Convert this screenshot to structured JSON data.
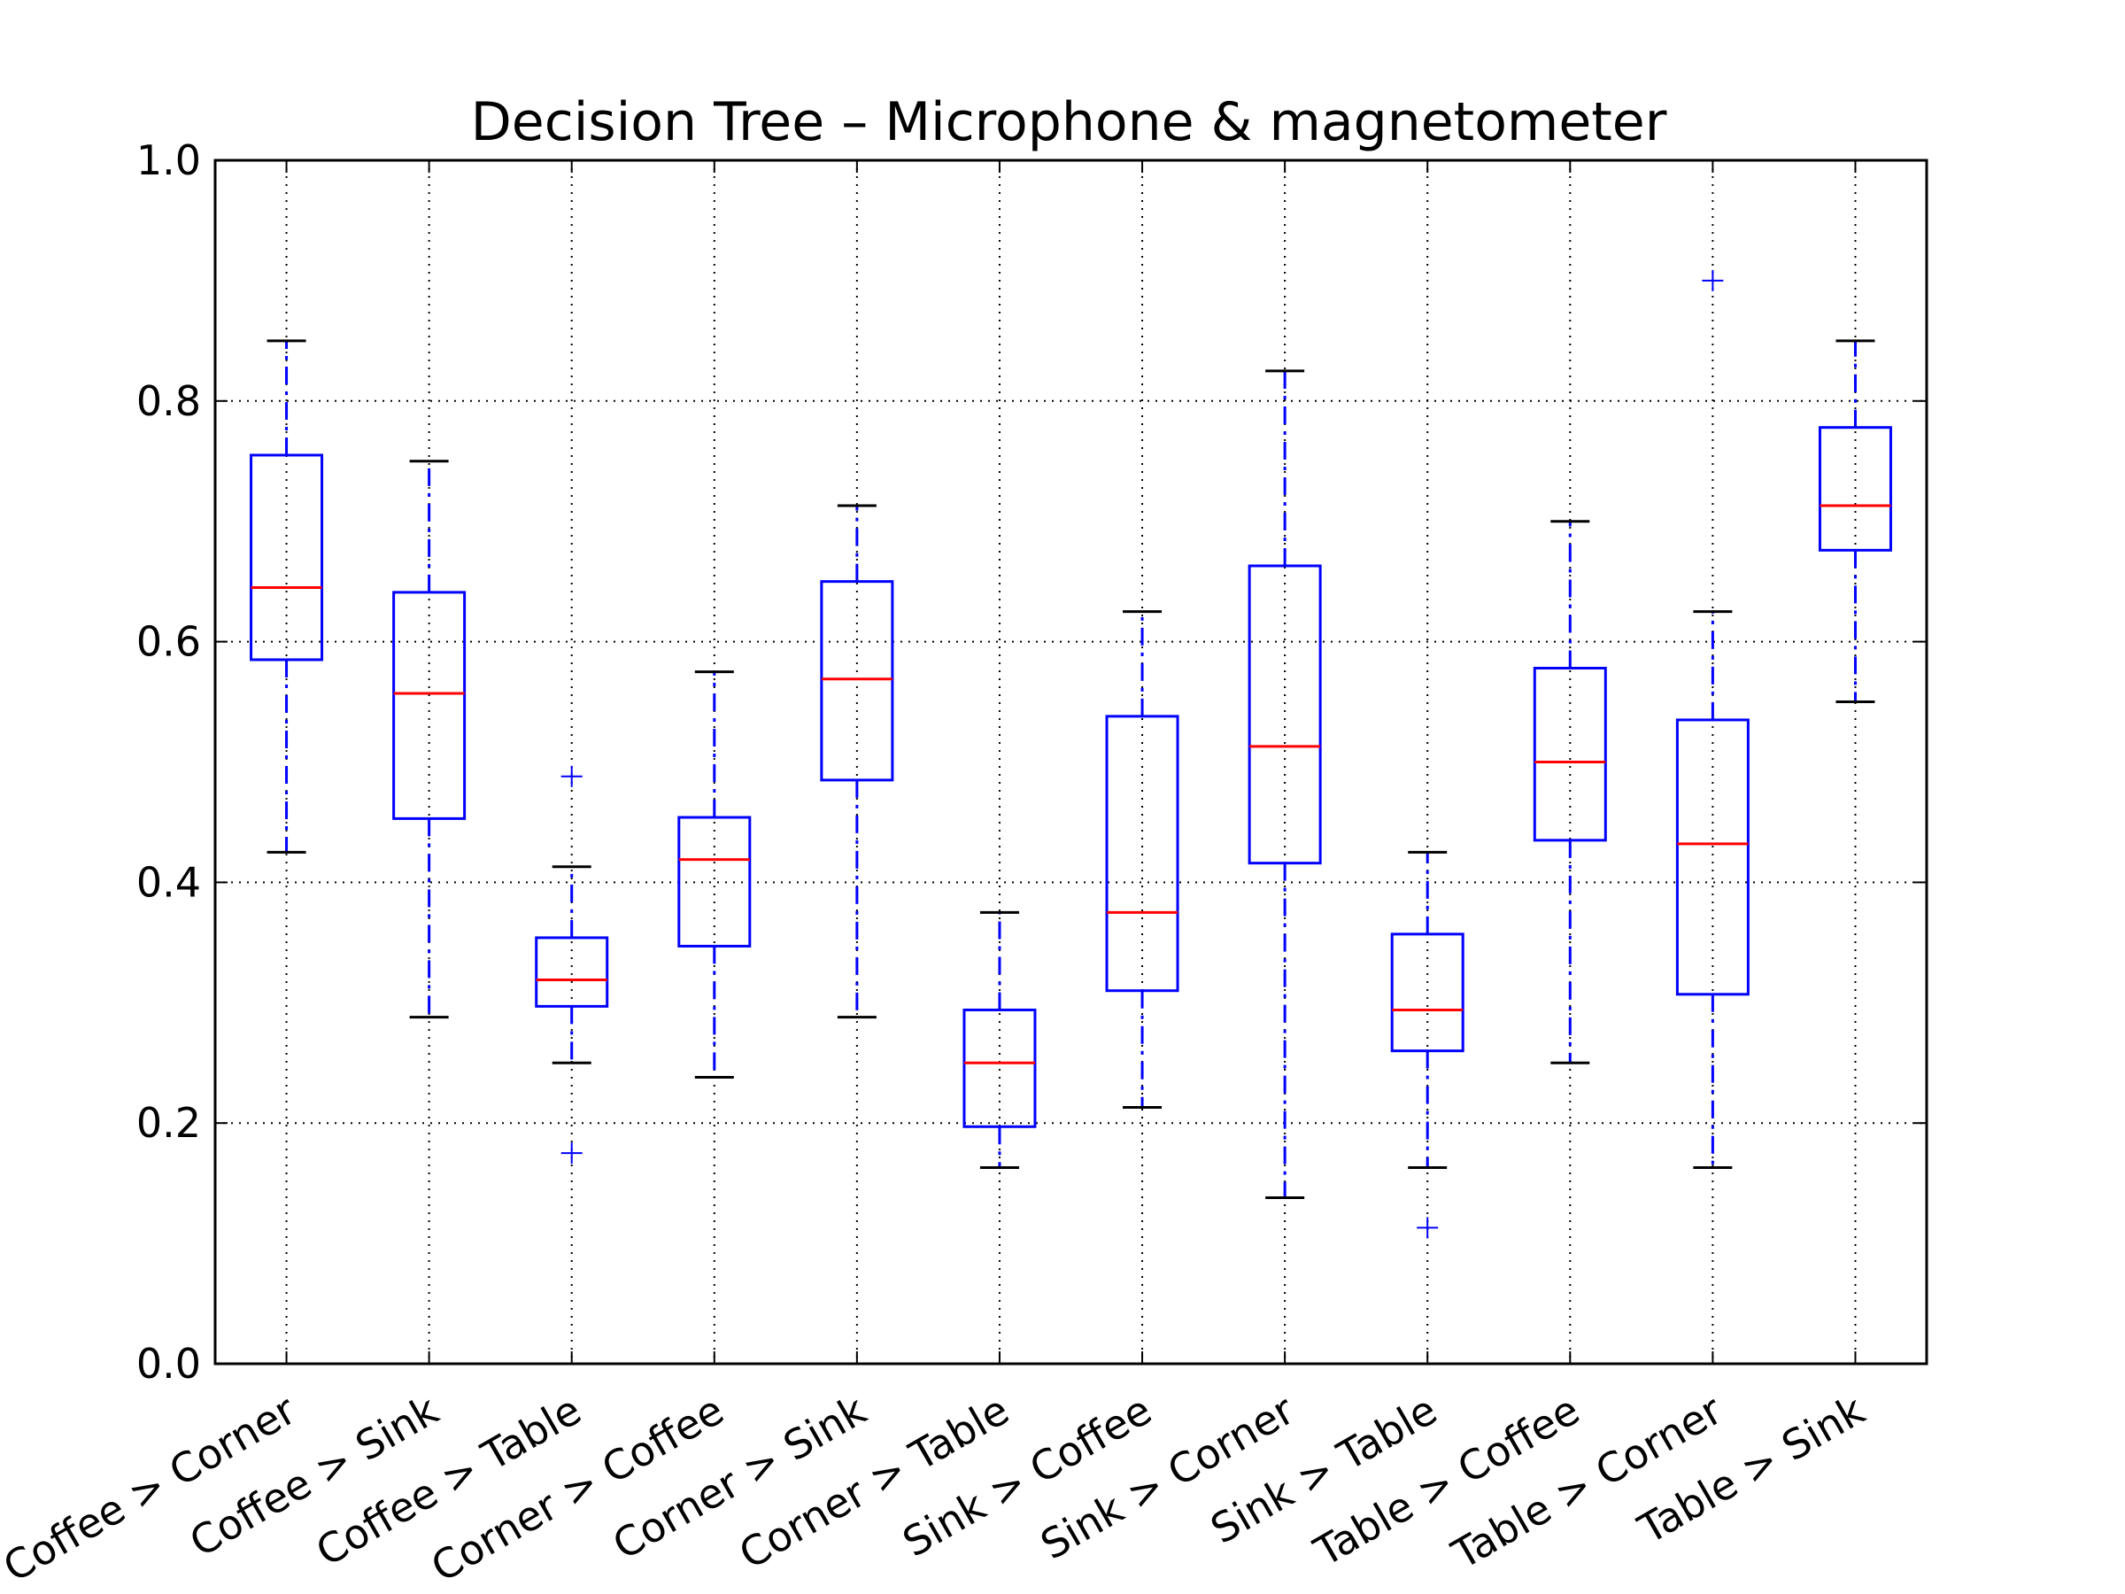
{
  "chart_data": {
    "type": "boxplot",
    "title": "Decision Tree – Microphone & magnetometer",
    "xlabel": "",
    "ylabel": "",
    "ylim": [
      0.0,
      1.0
    ],
    "yticks": [
      "0.0",
      "0.2",
      "0.4",
      "0.6",
      "0.8",
      "1.0"
    ],
    "grid": true,
    "colors": {
      "box": "#0000ff",
      "median": "#ff0000",
      "cap": "#000000",
      "outlier": "#0000ff",
      "grid": "#000000"
    },
    "categories": [
      "Coffee > Corner",
      "Coffee > Sink",
      "Coffee > Table",
      "Corner > Coffee",
      "Corner > Sink",
      "Corner > Table",
      "Sink > Coffee",
      "Sink > Corner",
      "Sink > Table",
      "Table > Coffee",
      "Table > Corner",
      "Table > Sink"
    ],
    "boxes": [
      {
        "whislo": 0.425,
        "q1": 0.585,
        "med": 0.645,
        "q3": 0.755,
        "whishi": 0.85,
        "fliers": []
      },
      {
        "whislo": 0.288,
        "q1": 0.453,
        "med": 0.557,
        "q3": 0.641,
        "whishi": 0.75,
        "fliers": []
      },
      {
        "whislo": 0.25,
        "q1": 0.297,
        "med": 0.319,
        "q3": 0.354,
        "whishi": 0.413,
        "fliers": [
          0.488,
          0.175
        ]
      },
      {
        "whislo": 0.238,
        "q1": 0.347,
        "med": 0.419,
        "q3": 0.454,
        "whishi": 0.575,
        "fliers": []
      },
      {
        "whislo": 0.288,
        "q1": 0.485,
        "med": 0.569,
        "q3": 0.65,
        "whishi": 0.713,
        "fliers": []
      },
      {
        "whislo": 0.163,
        "q1": 0.197,
        "med": 0.25,
        "q3": 0.294,
        "whishi": 0.375,
        "fliers": []
      },
      {
        "whislo": 0.213,
        "q1": 0.31,
        "med": 0.375,
        "q3": 0.538,
        "whishi": 0.625,
        "fliers": []
      },
      {
        "whislo": 0.138,
        "q1": 0.416,
        "med": 0.513,
        "q3": 0.663,
        "whishi": 0.825,
        "fliers": []
      },
      {
        "whislo": 0.163,
        "q1": 0.26,
        "med": 0.294,
        "q3": 0.357,
        "whishi": 0.425,
        "fliers": [
          0.113
        ]
      },
      {
        "whislo": 0.25,
        "q1": 0.435,
        "med": 0.5,
        "q3": 0.578,
        "whishi": 0.7,
        "fliers": []
      },
      {
        "whislo": 0.163,
        "q1": 0.307,
        "med": 0.432,
        "q3": 0.535,
        "whishi": 0.625,
        "fliers": [
          0.9
        ]
      },
      {
        "whislo": 0.55,
        "q1": 0.676,
        "med": 0.713,
        "q3": 0.778,
        "whishi": 0.85,
        "fliers": []
      }
    ]
  }
}
